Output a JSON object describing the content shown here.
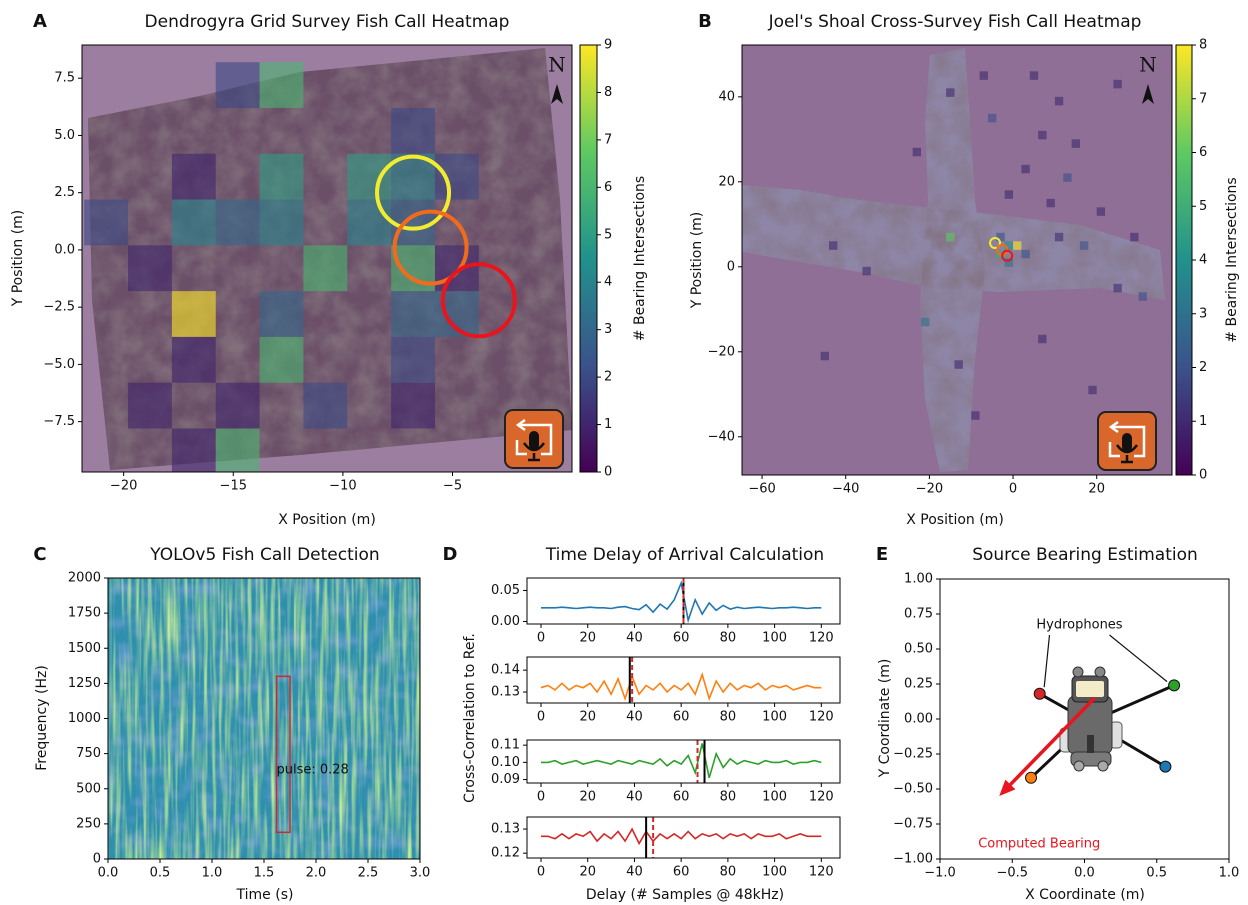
{
  "chart_data": [
    {
      "type": "heatmap",
      "panel_label": "A",
      "title": "Dendrogyra Grid Survey Fish Call Heatmap",
      "xlabel": "X Position (m)",
      "ylabel": "Y Position (m)",
      "colorbar_label": "# Bearing Intersections",
      "north_label": "N",
      "xlim": [
        -21.9,
        0.45
      ],
      "xticks": [
        {
          "value": -20,
          "label": "−20"
        },
        {
          "value": -15,
          "label": "−15"
        },
        {
          "value": -10,
          "label": "−10"
        },
        {
          "value": -5,
          "label": "−5"
        }
      ],
      "ylim": [
        -9.7,
        8.95
      ],
      "yticks": [
        {
          "value": -7.5,
          "label": "−7.5"
        },
        {
          "value": -5,
          "label": "−5.0"
        },
        {
          "value": -2.5,
          "label": "−2.5"
        },
        {
          "value": 0,
          "label": "0.0"
        },
        2.5,
        {
          "value": 5,
          "label": "5.0"
        },
        7.5
      ],
      "clim": [
        0,
        9
      ],
      "cticks": [
        0,
        1,
        2,
        3,
        4,
        5,
        6,
        7,
        8,
        9
      ],
      "bin_width": 2,
      "cells": [
        [
          -15.8,
          6.2,
          2
        ],
        [
          -13.8,
          6.2,
          6
        ],
        [
          -7.8,
          4.2,
          2
        ],
        [
          -17.8,
          2.2,
          1
        ],
        [
          -13.8,
          2.2,
          5
        ],
        [
          -9.8,
          2.2,
          5
        ],
        [
          -7.8,
          2.2,
          4
        ],
        [
          -5.8,
          2.2,
          2
        ],
        [
          -21.8,
          0.2,
          2
        ],
        [
          -17.8,
          0.2,
          4
        ],
        [
          -15.8,
          0.2,
          3
        ],
        [
          -13.8,
          0.2,
          4
        ],
        [
          -9.8,
          0.2,
          4
        ],
        [
          -7.8,
          0.2,
          3
        ],
        [
          -19.8,
          -1.8,
          1
        ],
        [
          -11.8,
          -1.8,
          6
        ],
        [
          -7.8,
          -1.8,
          6
        ],
        [
          -5.8,
          -1.8,
          1
        ],
        [
          -17.8,
          -3.8,
          9
        ],
        [
          -13.8,
          -3.8,
          3
        ],
        [
          -7.8,
          -3.8,
          3
        ],
        [
          -5.8,
          -3.8,
          3
        ],
        [
          -17.8,
          -5.8,
          1
        ],
        [
          -13.8,
          -5.8,
          6
        ],
        [
          -7.8,
          -5.8,
          2
        ],
        [
          -19.8,
          -7.8,
          1
        ],
        [
          -15.8,
          -7.8,
          1
        ],
        [
          -11.8,
          -7.8,
          2
        ],
        [
          -7.8,
          -7.8,
          1
        ],
        [
          -17.8,
          -9.8,
          1
        ],
        [
          -15.8,
          -9.8,
          6
        ]
      ],
      "markers": [
        {
          "x": -6.8,
          "y": 2.5,
          "color": "#f2ec2e"
        },
        {
          "x": -6.0,
          "y": 0.1,
          "color": "#f26b1d"
        },
        {
          "x": -3.8,
          "y": -2.2,
          "color": "#e8141e"
        }
      ]
    },
    {
      "type": "heatmap",
      "panel_label": "B",
      "title": "Joel's Shoal Cross-Survey Fish Call Heatmap",
      "xlabel": "X Position (m)",
      "ylabel": "Y Position (m)",
      "colorbar_label": "# Bearing Intersections",
      "north_label": "N",
      "xlim": [
        -64.8,
        38
      ],
      "xticks": [
        {
          "value": -60,
          "label": "−60"
        },
        {
          "value": -40,
          "label": "−40"
        },
        {
          "value": -20,
          "label": "−20"
        },
        0,
        20
      ],
      "ylim": [
        -49,
        52.2
      ],
      "yticks": [
        {
          "value": -40,
          "label": "−40"
        },
        {
          "value": -20,
          "label": "−20"
        },
        0,
        20,
        40
      ],
      "clim": [
        0,
        8
      ],
      "cticks": [
        0,
        1,
        2,
        3,
        4,
        5,
        6,
        7,
        8
      ],
      "bin_width": 2,
      "cells": [
        [
          -8,
          44,
          1
        ],
        [
          4,
          44,
          1
        ],
        [
          -16,
          40,
          1
        ],
        [
          10,
          38,
          1
        ],
        [
          24,
          42,
          1
        ],
        [
          -6,
          34,
          2
        ],
        [
          6,
          30,
          1
        ],
        [
          14,
          28,
          1
        ],
        [
          -24,
          26,
          1
        ],
        [
          2,
          22,
          1
        ],
        [
          12,
          20,
          2
        ],
        [
          -2,
          16,
          1
        ],
        [
          8,
          14,
          1
        ],
        [
          20,
          12,
          1
        ],
        [
          -16,
          6,
          6
        ],
        [
          -4,
          6,
          2
        ],
        [
          -2,
          4,
          4
        ],
        [
          0,
          4,
          8
        ],
        [
          -4,
          2,
          5
        ],
        [
          -2,
          0,
          3
        ],
        [
          2,
          2,
          2
        ],
        [
          10,
          6,
          1
        ],
        [
          16,
          4,
          2
        ],
        [
          30,
          -8,
          2
        ],
        [
          24,
          -6,
          1
        ],
        [
          -44,
          4,
          1
        ],
        [
          -36,
          -2,
          1
        ],
        [
          -22,
          -14,
          3
        ],
        [
          -14,
          -24,
          1
        ],
        [
          -46,
          -22,
          1
        ],
        [
          6,
          -18,
          1
        ],
        [
          -10,
          -36,
          1
        ],
        [
          18,
          -30,
          1
        ],
        [
          28,
          6,
          1
        ]
      ],
      "markers": [
        {
          "x": -4.3,
          "y": 5.6,
          "color": "#f2ec2e"
        },
        {
          "x": -2.6,
          "y": 4.0,
          "color": "#f26b1d"
        },
        {
          "x": -1.4,
          "y": 2.6,
          "color": "#e8141e"
        }
      ]
    },
    {
      "type": "spectrogram",
      "panel_label": "C",
      "title": "YOLOv5 Fish Call Detection",
      "xlabel": "Time (s)",
      "ylabel": "Frequency (Hz)",
      "xlim": [
        0,
        3
      ],
      "xticks": [
        {
          "value": 0,
          "label": "0.0"
        },
        0.5,
        {
          "value": 1,
          "label": "1.0"
        },
        1.5,
        {
          "value": 2,
          "label": "2.0"
        },
        2.5,
        {
          "value": 3,
          "label": "3.0"
        }
      ],
      "ylim": [
        0,
        2000
      ],
      "yticks": [
        0,
        250,
        500,
        750,
        1000,
        1250,
        1500,
        1750,
        2000
      ],
      "detections": [
        {
          "x0": 1.62,
          "x1": 1.75,
          "y0": 190,
          "y1": 1300,
          "label": "pulse: 0.28",
          "color": "#d62728"
        }
      ]
    },
    {
      "type": "line",
      "panel_label": "D",
      "title": "Time Delay of Arrival Calculation",
      "xlabel": "Delay (# Samples @ 48kHz)",
      "ylabel": "Cross-Correlation to Ref.",
      "x": [
        0,
        3,
        6,
        9,
        12,
        15,
        18,
        21,
        24,
        27,
        30,
        33,
        36,
        39,
        42,
        45,
        48,
        51,
        54,
        57,
        60,
        63,
        66,
        69,
        72,
        75,
        78,
        81,
        84,
        87,
        90,
        93,
        96,
        99,
        102,
        105,
        108,
        111,
        114,
        117,
        120
      ],
      "xlim": [
        -6,
        128
      ],
      "xticks": [
        0,
        20,
        40,
        60,
        80,
        100,
        120
      ],
      "subplots": [
        {
          "ylim": [
            -0.004,
            0.07
          ],
          "yticks": [
            {
              "value": 0,
              "label": "0.00"
            },
            0.05
          ],
          "series": [
            {
              "color": "#1f77b4",
              "values": [
                0.022,
                0.022,
                0.022,
                0.023,
                0.022,
                0.021,
                0.022,
                0.023,
                0.022,
                0.022,
                0.021,
                0.023,
                0.024,
                0.021,
                0.019,
                0.027,
                0.015,
                0.028,
                0.02,
                0.035,
                0.062,
                0.002,
                0.035,
                0.012,
                0.03,
                0.018,
                0.026,
                0.02,
                0.023,
                0.021,
                0.022,
                0.023,
                0.022,
                0.021,
                0.022,
                0.022,
                0.023,
                0.022,
                0.021,
                0.022,
                0.022
              ]
            }
          ],
          "vlines": [
            {
              "x": 61,
              "color": "#000000",
              "dash": false
            },
            {
              "x": 61,
              "color": "#d62728",
              "dash": true
            }
          ]
        },
        {
          "ylim": [
            0.125,
            0.146
          ],
          "yticks": [
            0.13,
            0.14
          ],
          "series": [
            {
              "color": "#ff7f0e",
              "values": [
                0.132,
                0.133,
                0.131,
                0.134,
                0.131,
                0.133,
                0.132,
                0.134,
                0.13,
                0.135,
                0.129,
                0.136,
                0.127,
                0.137,
                0.129,
                0.133,
                0.131,
                0.134,
                0.13,
                0.133,
                0.131,
                0.134,
                0.129,
                0.138,
                0.127,
                0.135,
                0.13,
                0.134,
                0.131,
                0.133,
                0.132,
                0.134,
                0.131,
                0.133,
                0.132,
                0.133,
                0.131,
                0.132,
                0.133,
                0.132,
                0.132
              ]
            }
          ],
          "vlines": [
            {
              "x": 38,
              "color": "#000000",
              "dash": false
            },
            {
              "x": 39,
              "color": "#d62728",
              "dash": true
            }
          ]
        },
        {
          "ylim": [
            0.088,
            0.113
          ],
          "yticks": [
            0.09,
            {
              "value": 0.1,
              "label": "0.10"
            },
            0.11
          ],
          "series": [
            {
              "color": "#2ca02c",
              "values": [
                0.1,
                0.1,
                0.101,
                0.099,
                0.1,
                0.101,
                0.099,
                0.1,
                0.101,
                0.1,
                0.099,
                0.101,
                0.1,
                0.099,
                0.101,
                0.1,
                0.099,
                0.102,
                0.098,
                0.101,
                0.099,
                0.104,
                0.094,
                0.111,
                0.091,
                0.105,
                0.097,
                0.102,
                0.099,
                0.101,
                0.1,
                0.099,
                0.101,
                0.1,
                0.1,
                0.101,
                0.099,
                0.1,
                0.1,
                0.101,
                0.1
              ]
            }
          ],
          "vlines": [
            {
              "x": 70,
              "color": "#000000",
              "dash": false
            },
            {
              "x": 67,
              "color": "#d62728",
              "dash": true
            }
          ]
        },
        {
          "ylim": [
            0.118,
            0.135
          ],
          "yticks": [
            0.12,
            0.13
          ],
          "series": [
            {
              "color": "#d62728",
              "values": [
                0.127,
                0.127,
                0.126,
                0.128,
                0.126,
                0.128,
                0.127,
                0.129,
                0.125,
                0.128,
                0.126,
                0.129,
                0.125,
                0.13,
                0.124,
                0.129,
                0.125,
                0.128,
                0.126,
                0.128,
                0.126,
                0.129,
                0.126,
                0.128,
                0.127,
                0.128,
                0.126,
                0.128,
                0.127,
                0.128,
                0.126,
                0.128,
                0.127,
                0.127,
                0.128,
                0.126,
                0.127,
                0.128,
                0.127,
                0.127,
                0.127
              ]
            }
          ],
          "vlines": [
            {
              "x": 45,
              "color": "#000000",
              "dash": false
            },
            {
              "x": 48,
              "color": "#d62728",
              "dash": true
            }
          ]
        }
      ]
    },
    {
      "type": "scatter",
      "panel_label": "E",
      "title": "Source Bearing Estimation",
      "xlabel": "X Coordinate (m)",
      "ylabel": "Y Coordinate (m)",
      "xlim": [
        -1,
        1
      ],
      "xticks": [
        {
          "value": -1,
          "label": "−1.0"
        },
        {
          "value": -0.5,
          "label": "−0.5"
        },
        {
          "value": 0,
          "label": "0.0"
        },
        0.5,
        {
          "value": 1,
          "label": "1.0"
        }
      ],
      "ylim": [
        -1,
        1
      ],
      "yticks": [
        {
          "value": -1,
          "label": "−1.00"
        },
        {
          "value": -0.75,
          "label": "−0.75"
        },
        {
          "value": -0.5,
          "label": "−0.50"
        },
        {
          "value": -0.25,
          "label": "−0.25"
        },
        {
          "value": 0,
          "label": "0.00"
        },
        0.25,
        {
          "value": 0.5,
          "label": "0.50"
        },
        0.75,
        {
          "value": 1,
          "label": "1.00"
        }
      ],
      "points": [
        {
          "x": -0.31,
          "y": 0.18,
          "color": "#d62728"
        },
        {
          "x": 0.62,
          "y": 0.24,
          "color": "#2ca02c"
        },
        {
          "x": -0.37,
          "y": -0.42,
          "color": "#ff7f0e"
        },
        {
          "x": 0.56,
          "y": -0.34,
          "color": "#1f77b4"
        }
      ],
      "points_label": "Hydrophones",
      "bearing": {
        "x0": 0.07,
        "y0": 0.15,
        "x1": -0.59,
        "y1": -0.55,
        "label": "Computed Bearing",
        "color": "#e8141e"
      }
    }
  ]
}
